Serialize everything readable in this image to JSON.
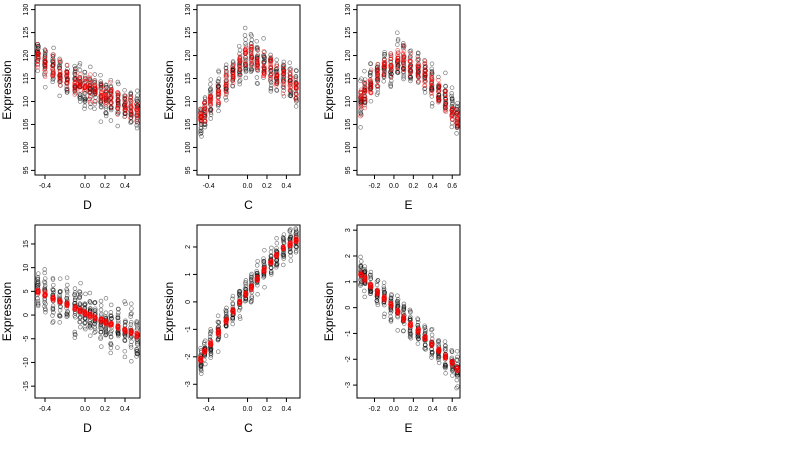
{
  "figure": {
    "point_color_black": "#000000",
    "point_color_red": "#ff0000"
  },
  "chart_data": [
    {
      "type": "scatter",
      "xlabel": "D",
      "ylabel": "Expression",
      "xlim": [
        -0.5,
        0.55
      ],
      "ylim": [
        94,
        131
      ],
      "xticks": [
        "-0.4",
        "0.0",
        "0.2",
        "0.4"
      ],
      "xtick_values": [
        -0.4,
        0.0,
        0.2,
        0.4
      ],
      "yticks": [
        "95",
        "100",
        "105",
        "110",
        "115",
        "120",
        "125",
        "130"
      ],
      "ytick_values": [
        95,
        100,
        105,
        110,
        115,
        120,
        125,
        130
      ],
      "series": [
        {
          "color": "#000000",
          "kind": "observed",
          "x_columns": [
            -0.47,
            -0.4,
            -0.32,
            -0.25,
            -0.18,
            -0.1,
            -0.05,
            0.0,
            0.05,
            0.1,
            0.16,
            0.21,
            0.26,
            0.33,
            0.4,
            0.46,
            0.52
          ],
          "trend": [
            120,
            118.5,
            117,
            116,
            115,
            114,
            113.5,
            113,
            112.5,
            112,
            111.5,
            111,
            110.5,
            110,
            109,
            108.5,
            108
          ],
          "spread": 9
        },
        {
          "color": "#ff0000",
          "kind": "fitted",
          "x_columns": [
            -0.47,
            -0.4,
            -0.32,
            -0.25,
            -0.18,
            -0.1,
            -0.05,
            0.0,
            0.05,
            0.1,
            0.16,
            0.21,
            0.26,
            0.33,
            0.4,
            0.46,
            0.52
          ],
          "trend": [
            120,
            118.5,
            117,
            116,
            115,
            114,
            113.5,
            113,
            112.5,
            112,
            111.5,
            111,
            110.5,
            110,
            109,
            108.5,
            108
          ],
          "spread": 6
        }
      ]
    },
    {
      "type": "scatter",
      "xlabel": "C",
      "ylabel": "Expression",
      "xlim": [
        -0.52,
        0.54
      ],
      "ylim": [
        94,
        131
      ],
      "xticks": [
        "-0.4",
        "0.0",
        "0.2",
        "0.4"
      ],
      "xtick_values": [
        -0.4,
        0.0,
        0.2,
        0.4
      ],
      "yticks": [
        "95",
        "100",
        "105",
        "110",
        "115",
        "120",
        "125",
        "130"
      ],
      "ytick_values": [
        95,
        100,
        105,
        110,
        115,
        120,
        125,
        130
      ],
      "series": [
        {
          "color": "#000000",
          "kind": "observed",
          "x_columns": [
            -0.48,
            -0.44,
            -0.38,
            -0.3,
            -0.22,
            -0.15,
            -0.08,
            -0.02,
            0.04,
            0.1,
            0.17,
            0.24,
            0.3,
            0.37,
            0.44,
            0.5
          ],
          "trend": [
            106,
            108,
            110,
            112,
            114,
            116,
            118,
            120,
            120,
            119,
            118,
            117,
            116,
            115,
            114,
            113
          ],
          "spread": 9
        },
        {
          "color": "#ff0000",
          "kind": "fitted",
          "x_columns": [
            -0.48,
            -0.44,
            -0.38,
            -0.3,
            -0.22,
            -0.15,
            -0.08,
            -0.02,
            0.04,
            0.1,
            0.17,
            0.24,
            0.3,
            0.37,
            0.44,
            0.5
          ],
          "trend": [
            106,
            108,
            110,
            112,
            114,
            116,
            118,
            120,
            120,
            119,
            118,
            117,
            116,
            115,
            114,
            113
          ],
          "spread": 6
        }
      ]
    },
    {
      "type": "scatter",
      "xlabel": "E",
      "ylabel": "Expression",
      "xlim": [
        -0.38,
        0.68
      ],
      "ylim": [
        94,
        131
      ],
      "xticks": [
        "-0.2",
        "0.0",
        "0.2",
        "0.4",
        "0.6"
      ],
      "xtick_values": [
        -0.2,
        0.0,
        0.2,
        0.4,
        0.6
      ],
      "yticks": [
        "95",
        "100",
        "105",
        "110",
        "115",
        "120",
        "125",
        "130"
      ],
      "ytick_values": [
        95,
        100,
        105,
        110,
        115,
        120,
        125,
        130
      ],
      "series": [
        {
          "color": "#000000",
          "kind": "observed",
          "x_columns": [
            -0.34,
            -0.3,
            -0.24,
            -0.17,
            -0.1,
            -0.03,
            0.04,
            0.1,
            0.17,
            0.25,
            0.32,
            0.39,
            0.46,
            0.53,
            0.6,
            0.65
          ],
          "trend": [
            110,
            112,
            114,
            116,
            117,
            118,
            119,
            119,
            118,
            117,
            116,
            114,
            112,
            110,
            108,
            106
          ],
          "spread": 9
        },
        {
          "color": "#ff0000",
          "kind": "fitted",
          "x_columns": [
            -0.34,
            -0.3,
            -0.24,
            -0.17,
            -0.1,
            -0.03,
            0.04,
            0.1,
            0.17,
            0.25,
            0.32,
            0.39,
            0.46,
            0.53,
            0.6,
            0.65
          ],
          "trend": [
            110,
            112,
            114,
            116,
            117,
            118,
            119,
            119,
            118,
            117,
            116,
            114,
            112,
            110,
            108,
            106
          ],
          "spread": 6
        }
      ]
    },
    {
      "type": "scatter",
      "xlabel": "D",
      "ylabel": "Expression",
      "xlim": [
        -0.5,
        0.55
      ],
      "ylim": [
        -17.5,
        19
      ],
      "xticks": [
        "-0.4",
        "0.0",
        "0.2",
        "0.4"
      ],
      "xtick_values": [
        -0.4,
        0.0,
        0.2,
        0.4
      ],
      "yticks": [
        "-15",
        "-10",
        "-5",
        "0",
        "5",
        "10",
        "15"
      ],
      "ytick_values": [
        -15,
        -10,
        -5,
        0,
        5,
        10,
        15
      ],
      "series": [
        {
          "color": "#000000",
          "kind": "observed",
          "x_columns": [
            -0.47,
            -0.4,
            -0.32,
            -0.25,
            -0.18,
            -0.1,
            -0.05,
            0.0,
            0.05,
            0.1,
            0.16,
            0.21,
            0.26,
            0.33,
            0.4,
            0.46,
            0.52
          ],
          "trend": [
            5,
            4.3,
            3.5,
            2.8,
            2.2,
            1.5,
            1.0,
            0.5,
            0.0,
            -0.5,
            -1.0,
            -1.5,
            -2.0,
            -2.5,
            -3.2,
            -3.7,
            -4.2
          ],
          "spread": 11
        },
        {
          "color": "#ff0000",
          "kind": "fitted",
          "x_columns": [
            -0.47,
            -0.4,
            -0.32,
            -0.25,
            -0.18,
            -0.1,
            -0.05,
            0.0,
            0.05,
            0.1,
            0.16,
            0.21,
            0.26,
            0.33,
            0.4,
            0.46,
            0.52
          ],
          "trend": [
            5,
            4.3,
            3.5,
            2.8,
            2.2,
            1.5,
            1.0,
            0.5,
            0.0,
            -0.5,
            -1.0,
            -1.5,
            -2.0,
            -2.5,
            -3.2,
            -3.7,
            -4.2
          ],
          "spread": 1
        }
      ]
    },
    {
      "type": "scatter",
      "xlabel": "C",
      "ylabel": "Expression",
      "xlim": [
        -0.52,
        0.54
      ],
      "ylim": [
        -3.5,
        2.8
      ],
      "xticks": [
        "-0.4",
        "0.0",
        "0.2",
        "0.4"
      ],
      "xtick_values": [
        -0.4,
        0.0,
        0.2,
        0.4
      ],
      "yticks": [
        "-3",
        "-2",
        "-1",
        "0",
        "1",
        "2"
      ],
      "ytick_values": [
        -3,
        -2,
        -1,
        0,
        1,
        2
      ],
      "series": [
        {
          "color": "#000000",
          "kind": "observed",
          "x_columns": [
            -0.48,
            -0.44,
            -0.38,
            -0.3,
            -0.22,
            -0.15,
            -0.08,
            -0.02,
            0.04,
            0.1,
            0.17,
            0.24,
            0.3,
            0.37,
            0.44,
            0.5
          ],
          "trend": [
            -2.1,
            -1.8,
            -1.5,
            -1.1,
            -0.7,
            -0.35,
            0.0,
            0.3,
            0.55,
            0.85,
            1.15,
            1.45,
            1.7,
            1.95,
            2.1,
            2.25
          ],
          "spread": 1.2
        },
        {
          "color": "#ff0000",
          "kind": "fitted",
          "x_columns": [
            -0.48,
            -0.44,
            -0.38,
            -0.3,
            -0.22,
            -0.15,
            -0.08,
            -0.02,
            0.04,
            0.1,
            0.17,
            0.24,
            0.3,
            0.37,
            0.44,
            0.5
          ],
          "trend": [
            -2.1,
            -1.8,
            -1.5,
            -1.1,
            -0.7,
            -0.35,
            0.0,
            0.3,
            0.55,
            0.85,
            1.15,
            1.45,
            1.7,
            1.95,
            2.1,
            2.25
          ],
          "spread": 0.2
        }
      ]
    },
    {
      "type": "scatter",
      "xlabel": "E",
      "ylabel": "Expression",
      "xlim": [
        -0.38,
        0.68
      ],
      "ylim": [
        -3.5,
        3.2
      ],
      "xticks": [
        "-0.2",
        "0.0",
        "0.2",
        "0.4",
        "0.6"
      ],
      "xtick_values": [
        -0.2,
        0.0,
        0.2,
        0.4,
        0.6
      ],
      "yticks": [
        "-3",
        "-2",
        "-1",
        "0",
        "1",
        "2",
        "3"
      ],
      "ytick_values": [
        -3,
        -2,
        -1,
        0,
        1,
        2,
        3
      ],
      "series": [
        {
          "color": "#000000",
          "kind": "observed",
          "x_columns": [
            -0.34,
            -0.3,
            -0.24,
            -0.17,
            -0.1,
            -0.03,
            0.04,
            0.1,
            0.17,
            0.25,
            0.32,
            0.39,
            0.46,
            0.53,
            0.6,
            0.65
          ],
          "trend": [
            1.3,
            1.1,
            0.85,
            0.6,
            0.35,
            0.1,
            -0.15,
            -0.4,
            -0.65,
            -0.9,
            -1.15,
            -1.4,
            -1.65,
            -1.9,
            -2.15,
            -2.35
          ],
          "spread": 1.3
        },
        {
          "color": "#ff0000",
          "kind": "fitted",
          "x_columns": [
            -0.34,
            -0.3,
            -0.24,
            -0.17,
            -0.1,
            -0.03,
            0.04,
            0.1,
            0.17,
            0.25,
            0.32,
            0.39,
            0.46,
            0.53,
            0.6,
            0.65
          ],
          "trend": [
            1.3,
            1.1,
            0.85,
            0.6,
            0.35,
            0.1,
            -0.15,
            -0.4,
            -0.65,
            -0.9,
            -1.15,
            -1.4,
            -1.65,
            -1.9,
            -2.15,
            -2.35
          ],
          "spread": 0.2
        }
      ]
    }
  ]
}
